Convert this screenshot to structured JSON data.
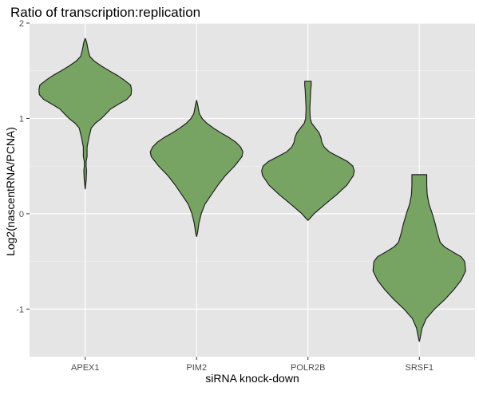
{
  "chart_data": {
    "type": "violin",
    "title": "Ratio of transcription:replication",
    "xlabel": "siRNA knock-down",
    "ylabel": "Log2(nascentRNA/PCNA)",
    "categories": [
      "APEX1",
      "PIM2",
      "POLR2B",
      "SRSF1"
    ],
    "ylim": [
      -1.5,
      2
    ],
    "yticks": [
      -1,
      0,
      1,
      2
    ],
    "yticklabels": [
      "-1",
      "0",
      "1",
      "2"
    ],
    "grid": true,
    "fill_color": "#77A462",
    "outline_color": "#222222",
    "panel_color": "#E5E5E5",
    "series": [
      {
        "category": "APEX1",
        "min": 0.26,
        "max": 1.84,
        "profile": [
          [
            0.26,
            0.0
          ],
          [
            0.35,
            0.02
          ],
          [
            0.45,
            0.03
          ],
          [
            0.5,
            0.02
          ],
          [
            0.55,
            0.02
          ],
          [
            0.6,
            0.04
          ],
          [
            0.7,
            0.04
          ],
          [
            0.8,
            0.08
          ],
          [
            0.9,
            0.13
          ],
          [
            0.95,
            0.22
          ],
          [
            1.0,
            0.35
          ],
          [
            1.05,
            0.45
          ],
          [
            1.1,
            0.55
          ],
          [
            1.15,
            0.72
          ],
          [
            1.2,
            0.9
          ],
          [
            1.25,
            0.99
          ],
          [
            1.3,
            1.0
          ],
          [
            1.35,
            0.98
          ],
          [
            1.4,
            0.85
          ],
          [
            1.45,
            0.7
          ],
          [
            1.5,
            0.52
          ],
          [
            1.55,
            0.35
          ],
          [
            1.6,
            0.2
          ],
          [
            1.65,
            0.1
          ],
          [
            1.7,
            0.07
          ],
          [
            1.75,
            0.05
          ],
          [
            1.8,
            0.03
          ],
          [
            1.84,
            0.0
          ]
        ]
      },
      {
        "category": "PIM2",
        "min": -0.24,
        "max": 1.19,
        "profile": [
          [
            -0.24,
            0.0
          ],
          [
            -0.2,
            0.02
          ],
          [
            -0.1,
            0.05
          ],
          [
            0.0,
            0.1
          ],
          [
            0.1,
            0.18
          ],
          [
            0.2,
            0.32
          ],
          [
            0.3,
            0.46
          ],
          [
            0.4,
            0.62
          ],
          [
            0.5,
            0.82
          ],
          [
            0.6,
            0.98
          ],
          [
            0.65,
            1.0
          ],
          [
            0.7,
            0.95
          ],
          [
            0.75,
            0.85
          ],
          [
            0.8,
            0.7
          ],
          [
            0.85,
            0.52
          ],
          [
            0.9,
            0.36
          ],
          [
            0.95,
            0.22
          ],
          [
            1.0,
            0.12
          ],
          [
            1.05,
            0.06
          ],
          [
            1.1,
            0.04
          ],
          [
            1.15,
            0.02
          ],
          [
            1.19,
            0.0
          ]
        ]
      },
      {
        "category": "POLR2B",
        "min": -0.07,
        "max": 1.39,
        "profile": [
          [
            -0.07,
            0.0
          ],
          [
            -0.05,
            0.04
          ],
          [
            0.0,
            0.13
          ],
          [
            0.1,
            0.37
          ],
          [
            0.2,
            0.62
          ],
          [
            0.3,
            0.84
          ],
          [
            0.4,
            0.98
          ],
          [
            0.45,
            1.0
          ],
          [
            0.5,
            0.97
          ],
          [
            0.55,
            0.85
          ],
          [
            0.6,
            0.65
          ],
          [
            0.65,
            0.46
          ],
          [
            0.7,
            0.35
          ],
          [
            0.75,
            0.3
          ],
          [
            0.8,
            0.28
          ],
          [
            0.85,
            0.24
          ],
          [
            0.9,
            0.16
          ],
          [
            0.95,
            0.08
          ],
          [
            1.0,
            0.05
          ],
          [
            1.1,
            0.04
          ],
          [
            1.2,
            0.05
          ],
          [
            1.3,
            0.06
          ],
          [
            1.35,
            0.07
          ],
          [
            1.39,
            0.07
          ]
        ]
      },
      {
        "category": "SRSF1",
        "min": -1.34,
        "max": 0.41,
        "profile": [
          [
            -1.34,
            0.0
          ],
          [
            -1.3,
            0.02
          ],
          [
            -1.2,
            0.06
          ],
          [
            -1.1,
            0.15
          ],
          [
            -1.0,
            0.33
          ],
          [
            -0.9,
            0.55
          ],
          [
            -0.8,
            0.74
          ],
          [
            -0.7,
            0.9
          ],
          [
            -0.6,
            1.0
          ],
          [
            -0.5,
            0.98
          ],
          [
            -0.45,
            0.9
          ],
          [
            -0.4,
            0.72
          ],
          [
            -0.35,
            0.55
          ],
          [
            -0.3,
            0.45
          ],
          [
            -0.2,
            0.39
          ],
          [
            -0.1,
            0.34
          ],
          [
            0.0,
            0.28
          ],
          [
            0.1,
            0.21
          ],
          [
            0.2,
            0.17
          ],
          [
            0.3,
            0.16
          ],
          [
            0.35,
            0.16
          ],
          [
            0.41,
            0.16
          ]
        ]
      }
    ]
  }
}
